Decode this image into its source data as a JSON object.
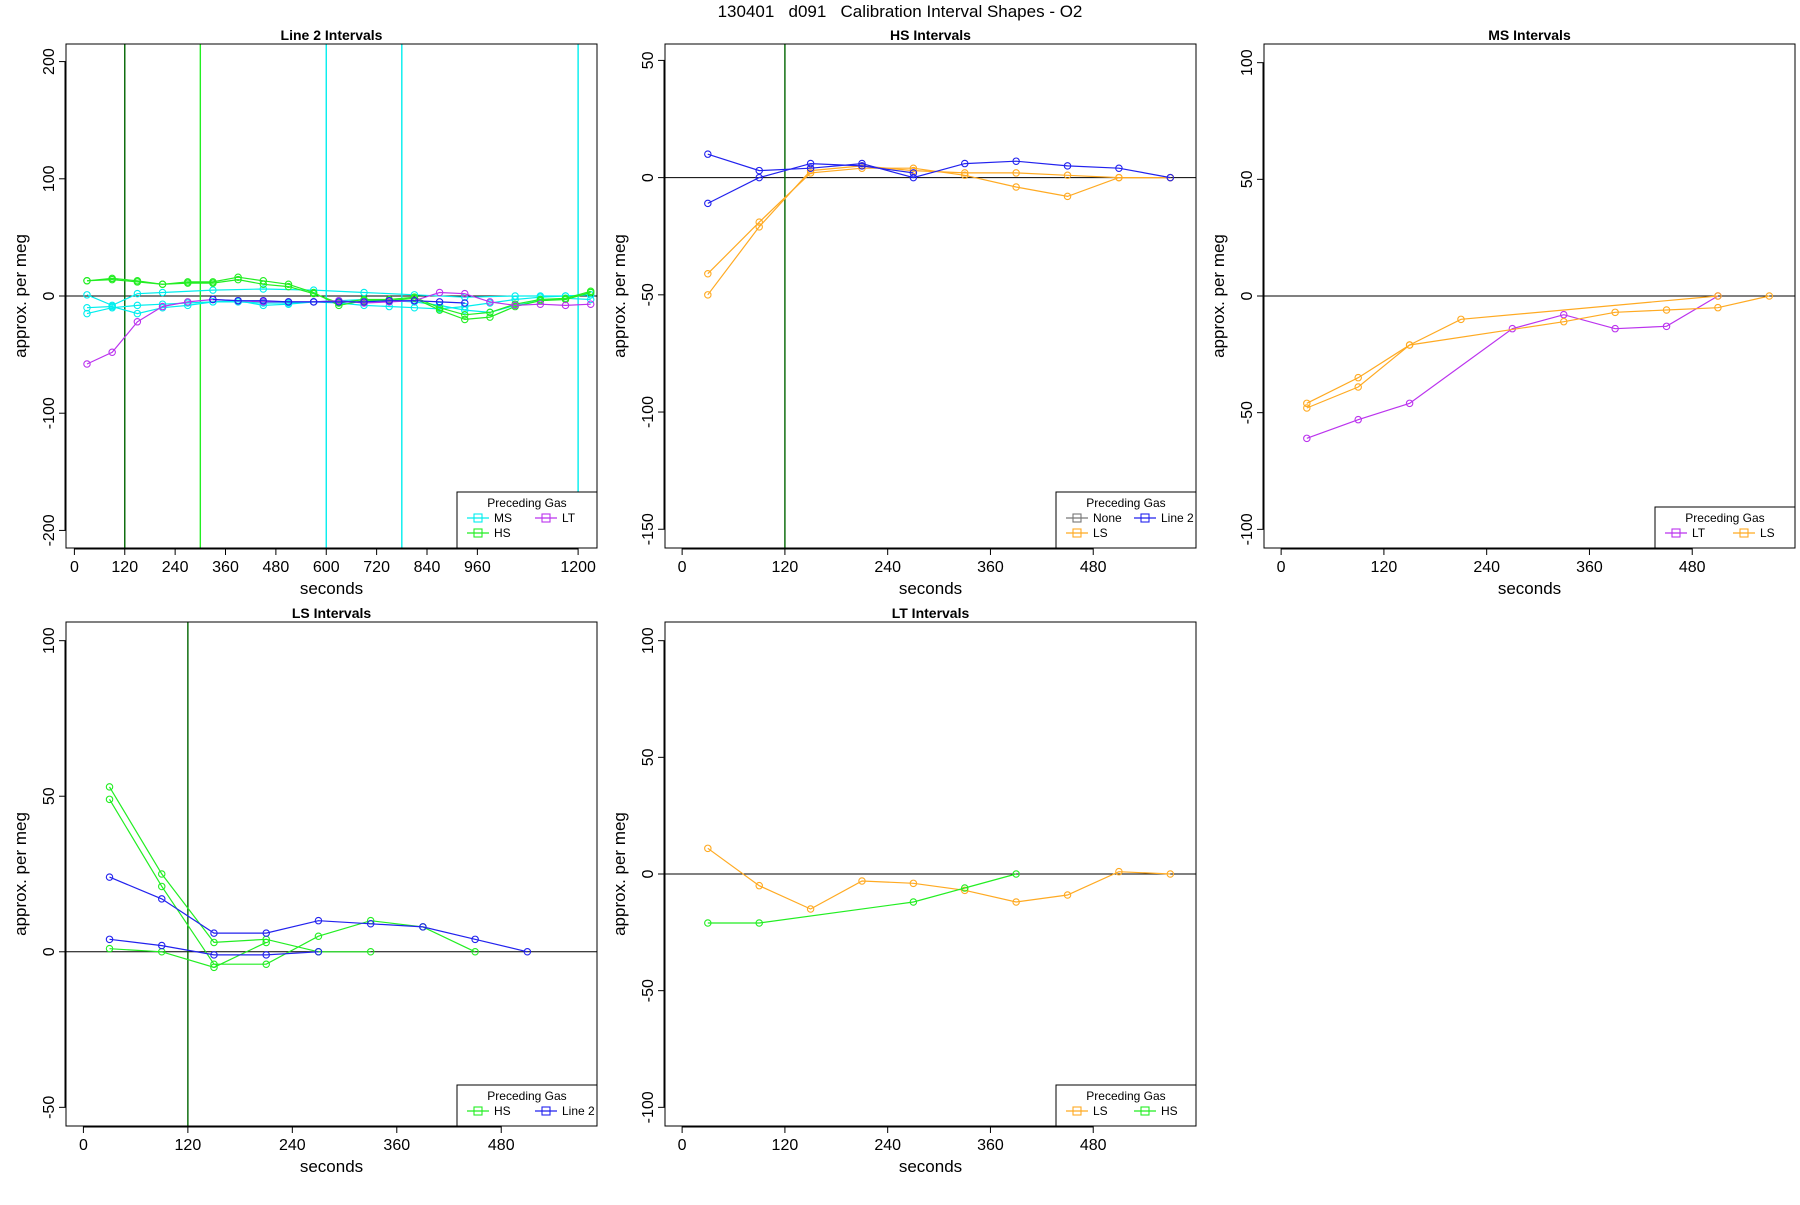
{
  "figure_title": "130401   d091   Calibration Interval Shapes - O2",
  "colors": {
    "MS": "#00eeee",
    "HS": "#22ee22",
    "LT": "#bb33ee",
    "LS": "#ffaa22",
    "Line 2": "#2222ee",
    "None": "#777777",
    "vline_dark": "#006400",
    "zero_line": "#000000"
  },
  "chart_data": [
    {
      "type": "line",
      "title": "Line 2 Intervals",
      "xlabel": "seconds",
      "ylabel": "approx. per meg",
      "xlim": [
        -20,
        1245
      ],
      "ylim": [
        -215,
        215
      ],
      "xticks": [
        0,
        120,
        240,
        360,
        480,
        600,
        720,
        840,
        960,
        1200
      ],
      "yticks": [
        -200,
        -100,
        0,
        100,
        200
      ],
      "hline": 0,
      "vlines": [
        {
          "x": 120,
          "color": "HS_dark"
        },
        {
          "x": 300,
          "color": "HS"
        },
        {
          "x": 600,
          "color": "MS"
        },
        {
          "x": 780,
          "color": "MS"
        },
        {
          "x": 1200,
          "color": "MS"
        }
      ],
      "legend": {
        "title": "Preceding Gas",
        "position": "bottom-right",
        "items": [
          "MS",
          "LT",
          "HS"
        ]
      },
      "series": [
        {
          "gas": "MS",
          "x": [
            30,
            90,
            150,
            210,
            270,
            330,
            390,
            450,
            510,
            570,
            630,
            690,
            750,
            810,
            870,
            930,
            990,
            1050,
            1110,
            1170,
            1230
          ],
          "y": [
            -15,
            -10,
            -8,
            -7,
            -6,
            -5,
            -5,
            -6,
            -6,
            -5,
            -4,
            -3,
            -4,
            -5,
            -8,
            -12,
            -14,
            -8,
            -4,
            -2,
            -3
          ]
        },
        {
          "gas": "MS",
          "x": [
            30,
            90,
            150,
            210,
            270,
            330,
            390,
            450,
            510,
            570,
            630,
            690,
            750,
            810,
            870,
            930,
            990,
            1050,
            1110,
            1170,
            1230
          ],
          "y": [
            -10,
            -9,
            -15,
            -10,
            -8,
            -5,
            -4,
            -8,
            -7,
            -5,
            -6,
            -8,
            -9,
            -10,
            -11,
            -9,
            -6,
            -3,
            -1,
            0,
            1
          ]
        },
        {
          "gas": "MS",
          "x": [
            30,
            90,
            150,
            210,
            330,
            450,
            570,
            690,
            810,
            930,
            1050,
            1110,
            1170,
            1230
          ],
          "y": [
            1,
            -8,
            2,
            3,
            5,
            6,
            5,
            3,
            1,
            -1,
            0,
            0,
            0,
            1
          ]
        },
        {
          "gas": "HS",
          "x": [
            30,
            90,
            150,
            210,
            270,
            330,
            390,
            450,
            510,
            570,
            630,
            690,
            750,
            810,
            870,
            930,
            990,
            1050,
            1110,
            1170,
            1230
          ],
          "y": [
            13,
            15,
            13,
            10,
            12,
            12,
            16,
            13,
            10,
            3,
            -8,
            -4,
            -4,
            -2,
            -12,
            -20,
            -18,
            -9,
            -4,
            -3,
            3
          ]
        },
        {
          "gas": "HS",
          "x": [
            30,
            90,
            150,
            210,
            270,
            330,
            390,
            450,
            510,
            570,
            630,
            690,
            750,
            810,
            870,
            930,
            990,
            1050,
            1110,
            1170,
            1230
          ],
          "y": [
            13,
            14,
            12,
            10,
            11,
            11,
            14,
            10,
            8,
            2,
            -6,
            -3,
            -3,
            -1,
            -10,
            -16,
            -14,
            -7,
            -3,
            -2,
            4
          ]
        },
        {
          "gas": "LT",
          "x": [
            30,
            90,
            150,
            210,
            270,
            330,
            390,
            450,
            510,
            570,
            630,
            690,
            750,
            810,
            870,
            930,
            990,
            1050,
            1110,
            1170,
            1230
          ],
          "y": [
            -58,
            -48,
            -22,
            -9,
            -5,
            -3,
            -4,
            -5,
            -5,
            -5,
            -4,
            -6,
            -5,
            -4,
            3,
            2,
            -5,
            -8,
            -7,
            -8,
            -7
          ]
        },
        {
          "gas": "Line 2",
          "x": [
            330,
            390,
            450,
            510,
            570,
            630,
            690,
            750,
            810,
            870,
            930
          ],
          "y": [
            -3,
            -4,
            -4,
            -5,
            -5,
            -5,
            -5,
            -4,
            -4,
            -5,
            -6
          ]
        }
      ]
    },
    {
      "type": "line",
      "title": "HS Intervals",
      "xlabel": "seconds",
      "ylabel": "approx. per meg",
      "xlim": [
        -20,
        600
      ],
      "ylim": [
        -158,
        57
      ],
      "xticks": [
        0,
        120,
        240,
        360,
        480
      ],
      "yticks": [
        -150,
        -100,
        -50,
        0,
        50
      ],
      "hline": 0,
      "vlines": [
        {
          "x": 120,
          "color": "vline_dark"
        }
      ],
      "legend": {
        "title": "Preceding Gas",
        "position": "bottom-right",
        "items": [
          "None",
          "Line 2",
          "LS"
        ]
      },
      "series": [
        {
          "gas": "LS",
          "x": [
            30,
            90,
            150,
            210,
            270,
            330,
            390,
            450,
            510,
            570
          ],
          "y": [
            -41,
            -19,
            2,
            4,
            4,
            1,
            -4,
            -8,
            0,
            0
          ]
        },
        {
          "gas": "LS",
          "x": [
            30,
            90,
            150,
            210,
            270,
            330,
            390,
            450,
            510,
            570
          ],
          "y": [
            -50,
            -21,
            3,
            5,
            3,
            2,
            2,
            1,
            0,
            0
          ]
        },
        {
          "gas": "Line 2",
          "x": [
            30,
            90,
            150,
            210,
            270,
            330,
            390,
            450,
            510,
            570
          ],
          "y": [
            10,
            3,
            4,
            6,
            0,
            6,
            7,
            5,
            4,
            0
          ]
        },
        {
          "gas": "Line 2",
          "x": [
            30,
            90,
            150,
            210,
            270
          ],
          "y": [
            -11,
            0,
            6,
            5,
            2
          ]
        }
      ]
    },
    {
      "type": "line",
      "title": "MS Intervals",
      "xlabel": "seconds",
      "ylabel": "approx. per meg",
      "xlim": [
        -20,
        600
      ],
      "ylim": [
        -108,
        108
      ],
      "xticks": [
        0,
        120,
        240,
        360,
        480
      ],
      "yticks": [
        -100,
        -50,
        0,
        50,
        100
      ],
      "hline": 0,
      "vlines": [],
      "legend": {
        "title": "Preceding Gas",
        "position": "bottom-right",
        "items": [
          "LT",
          "LS"
        ]
      },
      "series": [
        {
          "gas": "LT",
          "x": [
            30,
            90,
            150,
            270,
            330,
            390,
            450,
            510
          ],
          "y": [
            -61,
            -53,
            -46,
            -14,
            -8,
            -14,
            -13,
            0
          ]
        },
        {
          "gas": "LS",
          "x": [
            30,
            90,
            150,
            210,
            510
          ],
          "y": [
            -46,
            -35,
            -21,
            -10,
            0
          ]
        },
        {
          "gas": "LS",
          "x": [
            30,
            90,
            150,
            330,
            390,
            450,
            510,
            570
          ],
          "y": [
            -48,
            -39,
            -21,
            -11,
            -7,
            -6,
            -5,
            0
          ]
        }
      ]
    },
    {
      "type": "line",
      "title": "LS Intervals",
      "xlabel": "seconds",
      "ylabel": "approx. per meg",
      "xlim": [
        -20,
        590
      ],
      "ylim": [
        -56,
        106
      ],
      "xticks": [
        0,
        120,
        240,
        360,
        480
      ],
      "yticks": [
        -50,
        0,
        50,
        100
      ],
      "hline": 0,
      "vlines": [
        {
          "x": 120,
          "color": "vline_dark"
        }
      ],
      "legend": {
        "title": "Preceding Gas",
        "position": "bottom-right",
        "items": [
          "HS",
          "Line 2"
        ]
      },
      "series": [
        {
          "gas": "HS",
          "x": [
            30,
            90,
            150,
            210,
            270,
            330
          ],
          "y": [
            53,
            25,
            3,
            4,
            0,
            0
          ]
        },
        {
          "gas": "HS",
          "x": [
            30,
            90,
            150,
            210,
            270,
            330,
            390,
            450
          ],
          "y": [
            49,
            21,
            -4,
            -4,
            5,
            10,
            8,
            0
          ]
        },
        {
          "gas": "HS",
          "x": [
            30,
            90,
            150,
            210
          ],
          "y": [
            1,
            0,
            -5,
            3
          ]
        },
        {
          "gas": "Line 2",
          "x": [
            30,
            90,
            150,
            210,
            270,
            330,
            390,
            450,
            510
          ],
          "y": [
            24,
            17,
            6,
            6,
            10,
            9,
            8,
            4,
            0
          ]
        },
        {
          "gas": "Line 2",
          "x": [
            30,
            90,
            150,
            210,
            270
          ],
          "y": [
            4,
            2,
            -1,
            -1,
            0
          ]
        }
      ]
    },
    {
      "type": "line",
      "title": "LT Intervals",
      "xlabel": "seconds",
      "ylabel": "approx. per meg",
      "xlim": [
        -20,
        600
      ],
      "ylim": [
        -108,
        108
      ],
      "xticks": [
        0,
        120,
        240,
        360,
        480
      ],
      "yticks": [
        -100,
        -50,
        0,
        50,
        100
      ],
      "hline": 0,
      "vlines": [],
      "legend": {
        "title": "Preceding Gas",
        "position": "bottom-right",
        "items": [
          "LS",
          "HS"
        ]
      },
      "series": [
        {
          "gas": "LS",
          "x": [
            30,
            90,
            150,
            210,
            270,
            330,
            390,
            450,
            510,
            570
          ],
          "y": [
            11,
            -5,
            -15,
            -3,
            -4,
            -7,
            -12,
            -9,
            1,
            0
          ]
        },
        {
          "gas": "HS",
          "x": [
            30,
            90,
            270,
            330,
            390
          ],
          "y": [
            -21,
            -21,
            -12,
            -6,
            0
          ]
        }
      ]
    }
  ]
}
